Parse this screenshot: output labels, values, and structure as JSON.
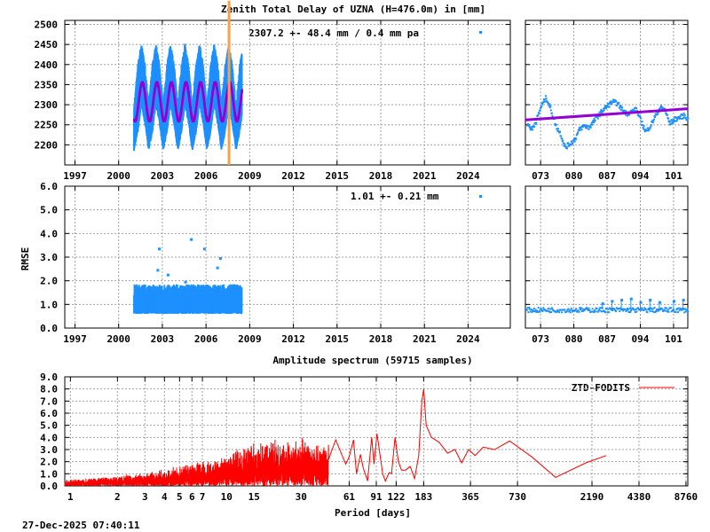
{
  "chart_data": [
    {
      "type": "scatter",
      "title": "Zenith Total Delay of UZNA (H=476.0m) in [mm]",
      "annotation": "2307.2 +-  48.4 mm /  0.4 mm pa",
      "ylim": [
        2150,
        2510
      ],
      "xlim": [
        1996.3,
        2026.9
      ],
      "yticks": [
        2200,
        2250,
        2300,
        2350,
        2400,
        2450,
        2500
      ],
      "xticks": [
        1997,
        2000,
        2003,
        2006,
        2009,
        2012,
        2015,
        2018,
        2021,
        2024
      ],
      "grid": true,
      "colors": {
        "data": "#1e90ff",
        "fit": "#9400d3",
        "marker": "#ff9f40"
      },
      "event_line_x": 2007.55,
      "data_range": [
        2001.0,
        2008.4
      ],
      "fit": {
        "mean": 2307.2,
        "amplitude": 48,
        "phase_peak": 0.55
      },
      "envelope": [
        [
          0.0,
          2185,
          2300
        ],
        [
          0.25,
          2230,
          2400
        ],
        [
          0.5,
          2300,
          2455
        ],
        [
          0.75,
          2250,
          2400
        ]
      ]
    },
    {
      "type": "scatter",
      "ylim": [
        2150,
        2510
      ],
      "xlim": [
        69.8,
        104
      ],
      "xticks": [
        "073",
        "080",
        "087",
        "094",
        "101"
      ],
      "grid": true,
      "values": [
        [
          70,
          2255
        ],
        [
          71,
          2240
        ],
        [
          72,
          2265
        ],
        [
          73,
          2300
        ],
        [
          74,
          2320
        ],
        [
          75,
          2290
        ],
        [
          76,
          2250
        ],
        [
          77,
          2230
        ],
        [
          78,
          2195
        ],
        [
          79,
          2205
        ],
        [
          80,
          2215
        ],
        [
          81,
          2240
        ],
        [
          82,
          2250
        ],
        [
          83,
          2245
        ],
        [
          84,
          2260
        ],
        [
          85,
          2275
        ],
        [
          86,
          2290
        ],
        [
          87,
          2300
        ],
        [
          88,
          2310
        ],
        [
          89,
          2305
        ],
        [
          90,
          2290
        ],
        [
          91,
          2280
        ],
        [
          92,
          2285
        ],
        [
          93,
          2290
        ],
        [
          94,
          2260
        ],
        [
          95,
          2235
        ],
        [
          96,
          2250
        ],
        [
          97,
          2275
        ],
        [
          98,
          2295
        ],
        [
          99,
          2290
        ],
        [
          100,
          2255
        ],
        [
          101,
          2265
        ],
        [
          102,
          2270
        ],
        [
          103,
          2275
        ],
        [
          104,
          2265
        ]
      ],
      "trend": [
        [
          69.8,
          2262
        ],
        [
          104,
          2290
        ]
      ]
    },
    {
      "type": "scatter",
      "ylabel": "RMSE",
      "annotation": "1.01 +-  0.21 mm",
      "ylim": [
        0,
        6
      ],
      "xlim": [
        1996.3,
        2026.9
      ],
      "yticks": [
        "0.0",
        "1.0",
        "2.0",
        "3.0",
        "4.0",
        "5.0",
        "6.0"
      ],
      "xticks": [
        1997,
        2000,
        2003,
        2006,
        2009,
        2012,
        2015,
        2018,
        2021,
        2024
      ],
      "grid": true,
      "data_range": [
        2001.0,
        2008.4
      ],
      "typical_range": [
        0.6,
        1.8
      ],
      "outliers": [
        [
          2002.7,
          3.4
        ],
        [
          2002.6,
          2.5
        ],
        [
          2004.5,
          2.0
        ],
        [
          2004.9,
          3.8
        ],
        [
          2005.8,
          3.4
        ],
        [
          2006.9,
          3.0
        ],
        [
          2006.7,
          2.6
        ],
        [
          2003.3,
          2.3
        ]
      ]
    },
    {
      "type": "scatter",
      "ylim": [
        0,
        6
      ],
      "xlim": [
        69.8,
        104
      ],
      "xticks": [
        "073",
        "080",
        "087",
        "094",
        "101"
      ],
      "grid": true,
      "typical_value": 0.8,
      "spikes": [
        [
          86,
          1.05
        ],
        [
          88,
          1.15
        ],
        [
          90,
          1.2
        ],
        [
          92,
          1.25
        ],
        [
          94,
          1.1
        ],
        [
          96,
          1.2
        ],
        [
          98,
          1.1
        ],
        [
          101,
          1.15
        ],
        [
          103,
          1.2
        ]
      ]
    },
    {
      "type": "line",
      "title": "Amplitude spectrum (59715 samples)",
      "xlabel": "Period [days]",
      "xscale": "log",
      "xlim": [
        0.92,
        9000
      ],
      "ylim": [
        0,
        9
      ],
      "yticks": [
        "0.0",
        "1.0",
        "2.0",
        "3.0",
        "4.0",
        "5.0",
        "6.0",
        "7.0",
        "8.0",
        "9.0"
      ],
      "xticks": [
        "1",
        "2",
        "3",
        "4",
        "5",
        "6",
        "7",
        "10",
        "15",
        "30",
        "61",
        "91",
        "122",
        "183",
        "365",
        "730",
        "2190",
        "4380",
        "8760"
      ],
      "grid": true,
      "legend": {
        "label": "ZTD-FODITS",
        "position": "top-right"
      },
      "color": "#ff0000",
      "noise_envelope": [
        [
          0.92,
          0.5
        ],
        [
          2,
          0.9
        ],
        [
          4,
          1.4
        ],
        [
          7,
          2.2
        ],
        [
          10,
          2.7
        ],
        [
          15,
          3.7
        ],
        [
          25,
          4.1
        ],
        [
          30,
          4.3
        ],
        [
          45,
          3.7
        ]
      ],
      "values": [
        [
          45,
          2.2
        ],
        [
          50,
          3.8
        ],
        [
          55,
          2.5
        ],
        [
          58,
          1.8
        ],
        [
          61,
          2.4
        ],
        [
          65,
          3.8
        ],
        [
          68,
          1.0
        ],
        [
          72,
          2.6
        ],
        [
          75,
          1.5
        ],
        [
          80,
          0.4
        ],
        [
          85,
          4.0
        ],
        [
          88,
          1.8
        ],
        [
          92,
          4.3
        ],
        [
          96,
          2.6
        ],
        [
          100,
          1.0
        ],
        [
          104,
          0.4
        ],
        [
          110,
          1.1
        ],
        [
          114,
          1.0
        ],
        [
          120,
          4.0
        ],
        [
          126,
          2.0
        ],
        [
          132,
          1.3
        ],
        [
          140,
          1.3
        ],
        [
          150,
          1.6
        ],
        [
          160,
          0.6
        ],
        [
          170,
          2.5
        ],
        [
          178,
          7.0
        ],
        [
          183,
          8.0
        ],
        [
          190,
          5.0
        ],
        [
          205,
          4.0
        ],
        [
          230,
          3.6
        ],
        [
          260,
          2.7
        ],
        [
          290,
          3.0
        ],
        [
          320,
          1.9
        ],
        [
          355,
          3.0
        ],
        [
          390,
          2.5
        ],
        [
          440,
          3.2
        ],
        [
          520,
          3.0
        ],
        [
          650,
          3.7
        ],
        [
          900,
          2.4
        ],
        [
          1280,
          0.7
        ],
        [
          2000,
          1.9
        ],
        [
          2700,
          2.5
        ]
      ]
    }
  ],
  "footer": {
    "timestamp": "27-Dec-2025 07:40:11"
  }
}
